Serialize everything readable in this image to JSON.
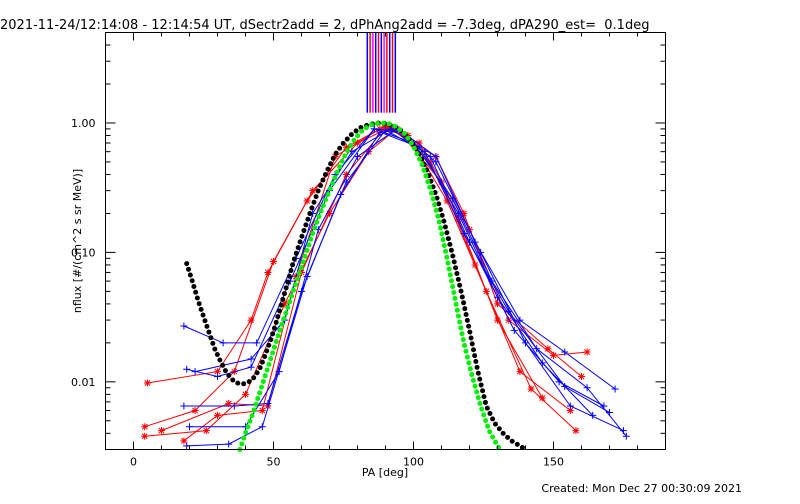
{
  "chart_data": {
    "type": "line",
    "title": "2021-11-24/12:14:08 - 12:14:54 UT, dSectr2add = 2, dPhAng2add = -7.3deg, dPA290_est=  0.1deg",
    "xlabel": "PA [deg]",
    "ylabel": "nflux [#/(cm^2 s sr MeV)]",
    "xlim": [
      -10,
      190
    ],
    "ylim": [
      0.003,
      5.0
    ],
    "yscale": "log",
    "xticks": [
      0,
      50,
      100,
      150
    ],
    "xtick_labels": [
      "0",
      "50",
      "100",
      "150"
    ],
    "yticks": [
      0.01,
      0.1,
      1.0
    ],
    "ytick_labels": [
      "0.01",
      "0.10",
      "1.00"
    ],
    "grid": false,
    "legend": "none",
    "colors": {
      "red": "#ff0000",
      "blue": "#0000ff",
      "black": "#000000",
      "green": "#00ee00",
      "magenta": "#ff00ff"
    },
    "top_markers": {
      "x": [
        83.5,
        84.5,
        85.5,
        86.5,
        87.5,
        88.5,
        89.5,
        90.5,
        91.5,
        92.5,
        93.5
      ],
      "colors": [
        "blue",
        "red",
        "magenta",
        "blue",
        "red",
        "blue",
        "magenta",
        "red",
        "blue",
        "red",
        "blue"
      ],
      "y_range": [
        1.2,
        5.0
      ]
    },
    "series": [
      {
        "color": "red",
        "marker": "asterisk",
        "x": [
          5,
          30,
          42,
          48,
          62,
          76,
          90,
          108,
          118,
          130,
          148,
          160
        ],
        "y": [
          0.0098,
          0.012,
          0.03,
          0.07,
          0.25,
          0.65,
          0.95,
          0.55,
          0.2,
          0.04,
          0.018,
          0.011
        ]
      },
      {
        "color": "red",
        "marker": "asterisk",
        "x": [
          4,
          22,
          36,
          50,
          64,
          80,
          92,
          106,
          120,
          134,
          150,
          162
        ],
        "y": [
          0.0045,
          0.006,
          0.012,
          0.085,
          0.3,
          0.7,
          0.93,
          0.5,
          0.15,
          0.03,
          0.016,
          0.017
        ]
      },
      {
        "color": "red",
        "marker": "asterisk",
        "x": [
          4,
          26,
          40,
          54,
          70,
          84,
          94,
          110,
          122,
          138,
          156
        ],
        "y": [
          0.0038,
          0.0042,
          0.008,
          0.04,
          0.2,
          0.6,
          0.9,
          0.35,
          0.08,
          0.012,
          0.006
        ]
      },
      {
        "color": "red",
        "marker": "asterisk",
        "x": [
          18,
          30,
          46,
          58,
          72,
          88,
          98,
          112,
          126,
          142,
          158
        ],
        "y": [
          0.0035,
          0.0055,
          0.006,
          0.065,
          0.55,
          0.9,
          0.8,
          0.25,
          0.05,
          0.0088,
          0.0042
        ]
      },
      {
        "color": "red",
        "marker": "asterisk",
        "x": [
          10,
          34,
          48,
          60,
          76,
          90,
          102,
          116,
          130,
          146
        ],
        "y": [
          0.0042,
          0.0068,
          0.0065,
          0.07,
          0.4,
          0.92,
          0.7,
          0.18,
          0.03,
          0.0075
        ]
      },
      {
        "color": "blue",
        "marker": "plus",
        "x": [
          18,
          32,
          44,
          58,
          72,
          86,
          96,
          108,
          122,
          138,
          154,
          172
        ],
        "y": [
          0.027,
          0.02,
          0.02,
          0.09,
          0.4,
          0.9,
          0.85,
          0.55,
          0.12,
          0.03,
          0.017,
          0.0088
        ]
      },
      {
        "color": "blue",
        "marker": "plus",
        "x": [
          19,
          30,
          42,
          56,
          70,
          86,
          100,
          114,
          128,
          144,
          162,
          176
        ],
        "y": [
          0.0125,
          0.011,
          0.013,
          0.06,
          0.3,
          0.9,
          0.7,
          0.26,
          0.06,
          0.018,
          0.009,
          0.0038
        ]
      },
      {
        "color": "blue",
        "marker": "plus",
        "x": [
          18,
          36,
          48,
          60,
          74,
          88,
          102,
          116,
          130,
          146,
          164
        ],
        "y": [
          0.0065,
          0.0065,
          0.0068,
          0.05,
          0.28,
          0.85,
          0.65,
          0.2,
          0.045,
          0.014,
          0.0055
        ]
      },
      {
        "color": "blue",
        "marker": "plus",
        "x": [
          19,
          34,
          46,
          62,
          76,
          90,
          104,
          118,
          134,
          154,
          170
        ],
        "y": [
          0.0032,
          0.0033,
          0.0045,
          0.065,
          0.35,
          0.88,
          0.6,
          0.14,
          0.035,
          0.0092,
          0.0058
        ]
      },
      {
        "color": "blue",
        "marker": "plus",
        "x": [
          20,
          40,
          52,
          66,
          80,
          94,
          108,
          124,
          140,
          156,
          175
        ],
        "y": [
          0.0045,
          0.0045,
          0.012,
          0.15,
          0.55,
          0.9,
          0.5,
          0.1,
          0.02,
          0.0065,
          0.0042
        ]
      },
      {
        "color": "blue",
        "marker": "plus",
        "x": [
          22,
          42,
          54,
          64,
          78,
          92,
          106,
          120,
          136,
          152,
          168
        ],
        "y": [
          0.012,
          0.015,
          0.03,
          0.2,
          0.6,
          0.9,
          0.55,
          0.12,
          0.025,
          0.01,
          0.0065
        ]
      }
    ],
    "fits": [
      {
        "name": "",
        "color": "black",
        "style": "thick-dotted",
        "x": [
          19,
          21,
          23,
          25,
          27,
          29,
          31,
          33,
          35,
          37,
          39,
          41,
          43,
          45,
          47,
          49,
          51,
          53,
          55,
          57,
          60,
          63,
          66,
          69,
          72,
          75,
          78,
          81,
          84,
          87,
          90,
          93,
          96,
          99,
          102,
          105,
          108,
          111,
          114,
          117,
          120,
          123,
          126,
          129,
          132,
          135,
          138,
          140
        ],
        "y": [
          0.082,
          0.06,
          0.043,
          0.032,
          0.024,
          0.018,
          0.0145,
          0.012,
          0.0105,
          0.0098,
          0.0096,
          0.0099,
          0.0108,
          0.0125,
          0.016,
          0.021,
          0.029,
          0.041,
          0.058,
          0.083,
          0.13,
          0.2,
          0.3,
          0.42,
          0.57,
          0.7,
          0.82,
          0.92,
          0.97,
          1.0,
          0.99,
          0.95,
          0.86,
          0.73,
          0.58,
          0.42,
          0.28,
          0.17,
          0.095,
          0.05,
          0.025,
          0.012,
          0.0065,
          0.0048,
          0.004,
          0.0035,
          0.0032,
          0.003
        ]
      },
      {
        "name": "",
        "color": "green",
        "style": "thick-dotted",
        "x": [
          38,
          40,
          43,
          46,
          49,
          52,
          55,
          58,
          61,
          64,
          67,
          70,
          73,
          76,
          79,
          82,
          85,
          88,
          91,
          94,
          97,
          100,
          103,
          106,
          109,
          112,
          115,
          118,
          121,
          124,
          127,
          130,
          131
        ],
        "y": [
          0.003,
          0.004,
          0.006,
          0.0095,
          0.015,
          0.024,
          0.037,
          0.058,
          0.09,
          0.14,
          0.21,
          0.3,
          0.43,
          0.59,
          0.75,
          0.89,
          0.97,
          1.0,
          0.99,
          0.93,
          0.82,
          0.66,
          0.48,
          0.31,
          0.18,
          0.09,
          0.042,
          0.02,
          0.011,
          0.0065,
          0.0042,
          0.0032,
          0.003
        ]
      }
    ]
  },
  "footer": {
    "created": "Created: Mon Dec 27 00:30:09 2021"
  }
}
